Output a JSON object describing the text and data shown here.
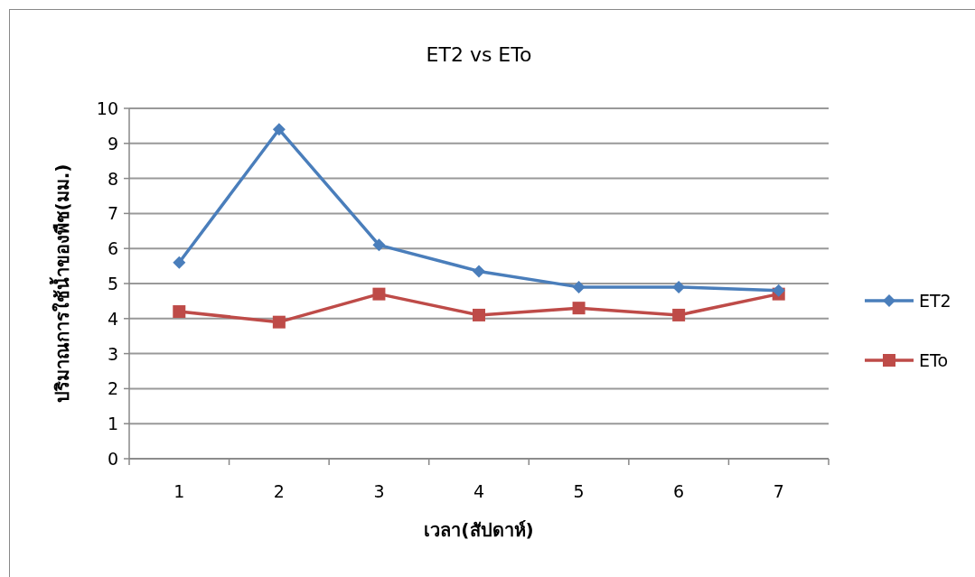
{
  "chart_data": {
    "type": "line",
    "title": "ET2 vs ETo",
    "xlabel": "เวลา(สัปดาห์)",
    "ylabel": "ปริมาณการใช้น้ำของพืช(มม.)",
    "categories": [
      "1",
      "2",
      "3",
      "4",
      "5",
      "6",
      "7"
    ],
    "series": [
      {
        "name": "ET2",
        "color": "#4a7ebb",
        "marker": "diamond",
        "values": [
          5.6,
          9.4,
          6.1,
          5.35,
          4.9,
          4.9,
          4.8
        ]
      },
      {
        "name": "ETo",
        "color": "#be4b48",
        "marker": "square",
        "values": [
          4.2,
          3.9,
          4.7,
          4.1,
          4.3,
          4.1,
          4.7
        ]
      }
    ],
    "ylim": [
      0,
      10
    ],
    "yticks": [
      0,
      1,
      2,
      3,
      4,
      5,
      6,
      7,
      8,
      9,
      10
    ],
    "grid": "y",
    "legend": "right"
  }
}
